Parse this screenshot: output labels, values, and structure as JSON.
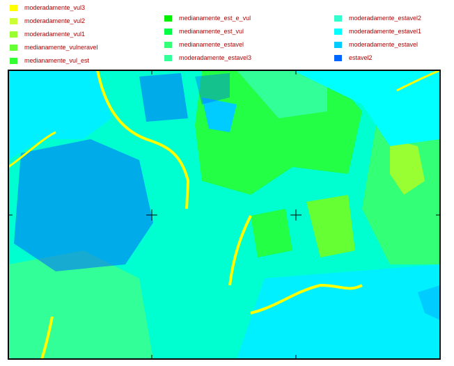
{
  "legend": [
    {
      "label": "moderadamente_vul3",
      "color": "#ffff00"
    },
    {
      "label": "moderadamente_vul2",
      "color": "#ccff33"
    },
    {
      "label": "moderadamente_vul1",
      "color": "#99ff33"
    },
    {
      "label": "medianamente_vulneravel",
      "color": "#66ff33"
    },
    {
      "label": "medianamente_vul_est",
      "color": "#33ff33"
    },
    {
      "label": "medianamente_est_e_vul",
      "color": "#00ee00"
    },
    {
      "label": "medianamente_est_vul",
      "color": "#00ff44"
    },
    {
      "label": "medianamente_estavel",
      "color": "#33ff77"
    },
    {
      "label": "moderadamente_estavel3",
      "color": "#33ff99"
    },
    {
      "label": "moderadamente_estavel2",
      "color": "#33ffcc"
    },
    {
      "label": "moderadamente_estavel1",
      "color": "#00ffff"
    },
    {
      "label": "moderadamente_estavel",
      "color": "#00ccff"
    },
    {
      "label": "estavel2",
      "color": "#0066ff"
    }
  ]
}
